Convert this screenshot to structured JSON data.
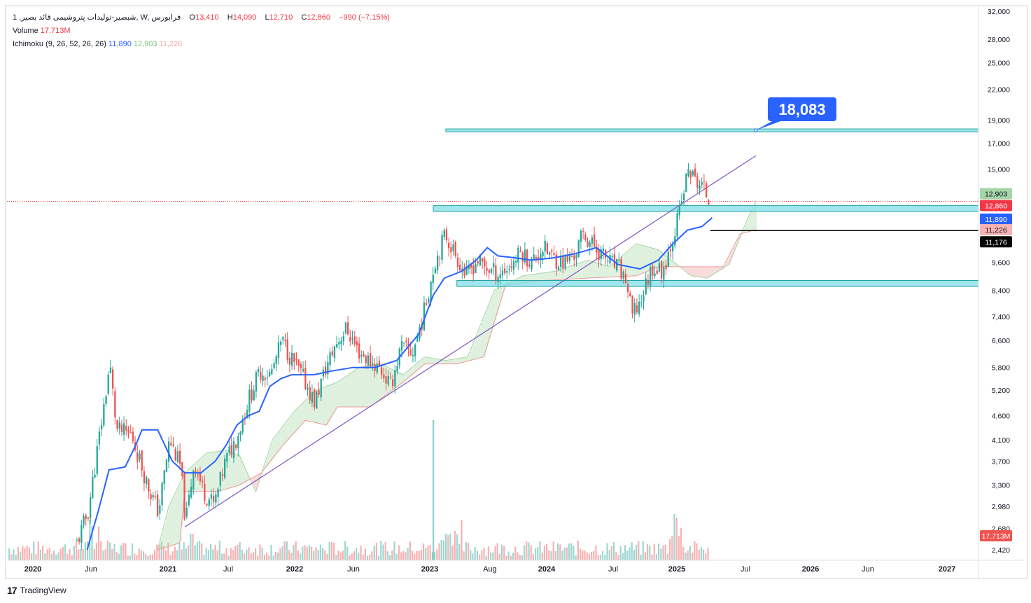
{
  "header": {
    "symbol": "1 ,شبصیر-تولیدات پتروشیمی قائد بصیر, W, فرابورس",
    "open_label": "O",
    "open": "13,410",
    "high_label": "H",
    "high": "14,090",
    "low_label": "L",
    "low": "12,710",
    "close_label": "C",
    "close": "12,860",
    "change": "−990 (−7.15%)",
    "volume_label": "Volume",
    "volume_value": "17.713M",
    "ichimoku_label": "Ichimoku (9, 26, 52, 26, 26)",
    "ichimoku_values": [
      "11,890",
      "12,903",
      "11,226"
    ]
  },
  "branding": {
    "logo_text": "TradingView"
  },
  "colors": {
    "up": "#26a69a",
    "down": "#ef5350",
    "kijun": "#2962ff",
    "cloud_green": "#a5d6a7",
    "cloud_red": "#ef9a9a",
    "zone_fill": "#80deea",
    "zone_border": "#26a69a",
    "trendline": "#7e57c2",
    "callout": "#2962ff"
  },
  "price_scale_badges": [
    {
      "text": "12,903",
      "bg": "#a5d6a7",
      "fg": "#131722"
    },
    {
      "text": "12,860",
      "bg": "#f23645",
      "fg": "#ffffff"
    },
    {
      "text": "11,890",
      "bg": "#2962ff",
      "fg": "#ffffff"
    },
    {
      "text": "11,226",
      "bg": "#f7b2b2",
      "fg": "#131722"
    },
    {
      "text": "11,176",
      "bg": "#000000",
      "fg": "#ffffff"
    },
    {
      "text": "17.713M",
      "bg": "#ef5350",
      "fg": "#ffffff"
    }
  ],
  "callout": {
    "text": "18,083"
  },
  "chart_data": {
    "type": "candlestick",
    "timeframe": "W",
    "log_scale": true,
    "grid": false,
    "y_ticks": [
      "32,000",
      "28,000",
      "25,000",
      "22,000",
      "19,000",
      "17,000",
      "15,000",
      "9,600",
      "8,400",
      "7,400",
      "6,600",
      "5,800",
      "5,200",
      "4,600",
      "4,100",
      "3,700",
      "3,300",
      "2,980",
      "2,680",
      "2,420"
    ],
    "x_ticks": [
      {
        "label": "2020",
        "major": true
      },
      {
        "label": "Jun",
        "major": false
      },
      {
        "label": "2021",
        "major": true
      },
      {
        "label": "Jul",
        "major": false
      },
      {
        "label": "2022",
        "major": true
      },
      {
        "label": "Jun",
        "major": false
      },
      {
        "label": "2023",
        "major": true
      },
      {
        "label": "Aug",
        "major": false
      },
      {
        "label": "2024",
        "major": true
      },
      {
        "label": "Jul",
        "major": false
      },
      {
        "label": "2025",
        "major": true
      },
      {
        "label": "Jul",
        "major": false
      },
      {
        "label": "2026",
        "major": true
      },
      {
        "label": "Jun",
        "major": false
      },
      {
        "label": "2027",
        "major": true
      }
    ],
    "price_path": [
      [
        "2020-05-01",
        2500
      ],
      [
        "2020-06-01",
        2900
      ],
      [
        "2020-07-15",
        4800
      ],
      [
        "2020-08-01",
        5900
      ],
      [
        "2020-08-20",
        4300
      ],
      [
        "2020-10-01",
        4200
      ],
      [
        "2020-11-15",
        3300
      ],
      [
        "2020-12-15",
        2900
      ],
      [
        "2021-01-15",
        4100
      ],
      [
        "2021-02-15",
        3600
      ],
      [
        "2021-03-01",
        2750
      ],
      [
        "2021-03-25",
        3700
      ],
      [
        "2021-04-20",
        3200
      ],
      [
        "2021-05-20",
        3000
      ],
      [
        "2021-06-20",
        3700
      ],
      [
        "2021-07-25",
        4200
      ],
      [
        "2021-08-25",
        5000
      ],
      [
        "2021-09-25",
        5700
      ],
      [
        "2021-10-25",
        5600
      ],
      [
        "2021-11-25",
        6600
      ],
      [
        "2021-12-25",
        6000
      ],
      [
        "2022-01-25",
        5500
      ],
      [
        "2022-02-25",
        4900
      ],
      [
        "2022-03-25",
        5700
      ],
      [
        "2022-04-25",
        6500
      ],
      [
        "2022-05-25",
        7000
      ],
      [
        "2022-06-25",
        6300
      ],
      [
        "2022-07-25",
        6000
      ],
      [
        "2022-08-25",
        5800
      ],
      [
        "2022-09-25",
        5300
      ],
      [
        "2022-10-25",
        6400
      ],
      [
        "2022-11-25",
        6200
      ],
      [
        "2022-12-25",
        7400
      ],
      [
        "2023-01-25",
        9500
      ],
      [
        "2023-02-25",
        11000
      ],
      [
        "2023-03-25",
        10000
      ],
      [
        "2023-04-25",
        9000
      ],
      [
        "2023-05-25",
        9700
      ],
      [
        "2023-06-25",
        9300
      ],
      [
        "2023-07-25",
        9100
      ],
      [
        "2023-08-25",
        9400
      ],
      [
        "2023-09-25",
        10100
      ],
      [
        "2023-10-25",
        9600
      ],
      [
        "2023-11-25",
        10300
      ],
      [
        "2023-12-25",
        9800
      ],
      [
        "2024-01-25",
        9600
      ],
      [
        "2024-02-25",
        10000
      ],
      [
        "2024-03-15",
        11000
      ],
      [
        "2024-04-15",
        10400
      ],
      [
        "2024-05-25",
        9700
      ],
      [
        "2024-06-25",
        9300
      ],
      [
        "2024-07-15",
        8800
      ],
      [
        "2024-08-01",
        7400
      ],
      [
        "2024-08-25",
        8000
      ],
      [
        "2024-09-25",
        9400
      ],
      [
        "2024-10-25",
        9200
      ],
      [
        "2024-11-25",
        11000
      ],
      [
        "2024-12-15",
        12500
      ],
      [
        "2025-01-05",
        15000
      ],
      [
        "2025-01-25",
        14200
      ],
      [
        "2025-02-15",
        13800
      ],
      [
        "2025-03-05",
        12860
      ]
    ],
    "kijun_path": [
      [
        "2020-06-01",
        2420
      ],
      [
        "2020-07-01",
        2900
      ],
      [
        "2020-08-01",
        3550
      ],
      [
        "2020-09-15",
        3600
      ],
      [
        "2020-10-15",
        4000
      ],
      [
        "2020-11-01",
        4300
      ],
      [
        "2020-12-15",
        4300
      ],
      [
        "2021-01-25",
        3700
      ],
      [
        "2021-03-01",
        3500
      ],
      [
        "2021-04-15",
        3500
      ],
      [
        "2021-05-25",
        3700
      ],
      [
        "2021-06-25",
        4000
      ],
      [
        "2021-07-25",
        4400
      ],
      [
        "2021-08-25",
        4600
      ],
      [
        "2021-09-25",
        4700
      ],
      [
        "2021-10-25",
        5300
      ],
      [
        "2021-11-25",
        5500
      ],
      [
        "2021-12-25",
        5600
      ],
      [
        "2022-02-25",
        5600
      ],
      [
        "2022-04-15",
        5700
      ],
      [
        "2022-06-15",
        5800
      ],
      [
        "2022-08-15",
        5800
      ],
      [
        "2022-10-15",
        6000
      ],
      [
        "2022-12-15",
        6800
      ],
      [
        "2023-01-25",
        8200
      ],
      [
        "2023-02-25",
        8900
      ],
      [
        "2023-04-15",
        9200
      ],
      [
        "2023-05-25",
        9700
      ],
      [
        "2023-06-25",
        10300
      ],
      [
        "2023-07-25",
        9900
      ],
      [
        "2023-09-15",
        9800
      ],
      [
        "2023-10-25",
        9700
      ],
      [
        "2023-12-25",
        9800
      ],
      [
        "2024-02-25",
        10000
      ],
      [
        "2024-04-25",
        10300
      ],
      [
        "2024-06-25",
        9500
      ],
      [
        "2024-08-25",
        9300
      ],
      [
        "2024-10-15",
        9700
      ],
      [
        "2024-11-25",
        10500
      ],
      [
        "2025-01-05",
        11200
      ],
      [
        "2025-02-15",
        11400
      ],
      [
        "2025-03-15",
        11890
      ]
    ],
    "senkou_a_path": [
      [
        "2020-12-15",
        2420
      ],
      [
        "2021-01-15",
        2980
      ],
      [
        "2021-03-01",
        3500
      ],
      [
        "2021-05-01",
        3850
      ],
      [
        "2021-06-25",
        3900
      ],
      [
        "2021-08-01",
        3800
      ],
      [
        "2021-09-15",
        3200
      ],
      [
        "2021-11-01",
        4100
      ],
      [
        "2022-01-01",
        4700
      ],
      [
        "2022-03-01",
        5200
      ],
      [
        "2022-05-01",
        5400
      ],
      [
        "2022-07-01",
        5800
      ],
      [
        "2022-09-01",
        5900
      ],
      [
        "2022-11-01",
        5600
      ],
      [
        "2023-01-01",
        6100
      ],
      [
        "2023-03-01",
        6000
      ],
      [
        "2023-05-01",
        6100
      ],
      [
        "2023-07-15",
        8400
      ],
      [
        "2023-10-01",
        9000
      ],
      [
        "2024-01-01",
        9200
      ],
      [
        "2024-04-01",
        9700
      ],
      [
        "2024-06-01",
        9400
      ],
      [
        "2024-08-15",
        10500
      ],
      [
        "2024-10-15",
        10200
      ],
      [
        "2025-01-15",
        9000
      ],
      [
        "2025-03-01",
        8900
      ],
      [
        "2025-05-01",
        9500
      ],
      [
        "2025-06-15",
        11500
      ],
      [
        "2025-07-15",
        12903
      ]
    ],
    "senkou_b_path": [
      [
        "2020-12-15",
        2420
      ],
      [
        "2021-02-15",
        2500
      ],
      [
        "2021-03-01",
        3200
      ],
      [
        "2021-06-01",
        3200
      ],
      [
        "2021-08-01",
        3300
      ],
      [
        "2021-10-01",
        3500
      ],
      [
        "2021-12-01",
        4000
      ],
      [
        "2022-02-01",
        4500
      ],
      [
        "2022-04-01",
        4400
      ],
      [
        "2022-05-01",
        4800
      ],
      [
        "2022-08-01",
        4800
      ],
      [
        "2022-11-01",
        5400
      ],
      [
        "2023-01-01",
        5900
      ],
      [
        "2023-04-01",
        5900
      ],
      [
        "2023-06-15",
        6100
      ],
      [
        "2023-08-15",
        8600
      ],
      [
        "2023-12-01",
        8800
      ],
      [
        "2024-04-01",
        8900
      ],
      [
        "2024-08-15",
        9000
      ],
      [
        "2024-10-15",
        9400
      ],
      [
        "2025-01-15",
        9400
      ],
      [
        "2025-04-15",
        9400
      ],
      [
        "2025-06-01",
        11000
      ],
      [
        "2025-07-15",
        11226
      ]
    ],
    "horizontal_zones": [
      {
        "from": "2023-03-01",
        "to": "2027-03-01",
        "low": 17950,
        "high": 18200
      },
      {
        "from": "2023-01-25",
        "to": "2027-03-01",
        "low": 12250,
        "high": 12600
      },
      {
        "from": "2023-04-01",
        "to": "2027-03-01",
        "low": 8550,
        "high": 8800
      }
    ],
    "horizontal_line": {
      "from": "2025-03-10",
      "to": "2027-03-01",
      "value": 11176
    },
    "last_price_line": 12860,
    "trendline": {
      "start": [
        "2021-03-01",
        2700
      ],
      "end": [
        "2025-07-15",
        16000
      ]
    },
    "callout_point": [
      "2025-07-15",
      18083
    ],
    "volume_peak_date": "2023-01-25"
  }
}
